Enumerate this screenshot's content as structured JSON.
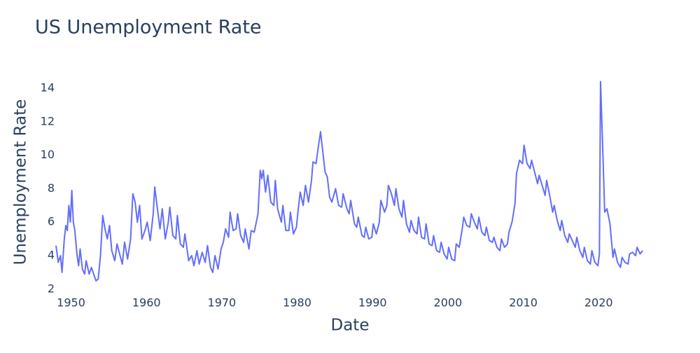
{
  "chart_data": {
    "type": "line",
    "title": "US Unemployment Rate",
    "x_label": "Date",
    "y_label": "Unemployment Rate",
    "color": "#636efa",
    "x": [
      1948.0,
      1948.3,
      1948.6,
      1948.8,
      1949.1,
      1949.3,
      1949.5,
      1949.7,
      1949.9,
      1950.1,
      1950.3,
      1950.5,
      1950.8,
      1951.0,
      1951.2,
      1951.5,
      1951.8,
      1952.0,
      1952.4,
      1952.7,
      1953.0,
      1953.3,
      1953.6,
      1953.9,
      1954.2,
      1954.5,
      1954.8,
      1955.1,
      1955.4,
      1955.8,
      1956.1,
      1956.5,
      1956.8,
      1957.1,
      1957.5,
      1957.9,
      1958.2,
      1958.5,
      1958.8,
      1959.1,
      1959.4,
      1959.8,
      1960.1,
      1960.5,
      1960.9,
      1961.1,
      1961.4,
      1961.8,
      1962.1,
      1962.5,
      1962.9,
      1963.1,
      1963.5,
      1963.9,
      1964.1,
      1964.5,
      1964.9,
      1965.1,
      1965.6,
      1966.0,
      1966.3,
      1966.7,
      1967.0,
      1967.4,
      1967.8,
      1968.1,
      1968.5,
      1968.8,
      1969.1,
      1969.5,
      1969.9,
      1970.2,
      1970.5,
      1970.9,
      1971.1,
      1971.5,
      1971.9,
      1972.1,
      1972.5,
      1972.9,
      1973.1,
      1973.6,
      1973.9,
      1974.3,
      1974.8,
      1975.1,
      1975.3,
      1975.5,
      1975.8,
      1976.1,
      1976.5,
      1976.9,
      1977.1,
      1977.4,
      1977.9,
      1978.1,
      1978.5,
      1978.9,
      1979.1,
      1979.5,
      1979.9,
      1980.1,
      1980.4,
      1980.8,
      1981.1,
      1981.5,
      1981.9,
      1982.1,
      1982.5,
      1982.9,
      1983.1,
      1983.4,
      1983.7,
      1984.0,
      1984.3,
      1984.6,
      1985.1,
      1985.5,
      1985.9,
      1986.1,
      1986.6,
      1986.9,
      1987.1,
      1987.6,
      1987.9,
      1988.1,
      1988.6,
      1988.9,
      1989.1,
      1989.5,
      1989.9,
      1990.1,
      1990.5,
      1990.9,
      1991.1,
      1991.6,
      1991.9,
      1992.1,
      1992.5,
      1992.9,
      1993.1,
      1993.5,
      1993.9,
      1994.1,
      1994.5,
      1994.9,
      1995.1,
      1995.5,
      1995.9,
      1996.1,
      1996.5,
      1996.9,
      1997.1,
      1997.5,
      1997.9,
      1998.1,
      1998.5,
      1998.9,
      1999.1,
      1999.5,
      1999.9,
      2000.1,
      2000.5,
      2000.9,
      2001.1,
      2001.5,
      2001.9,
      2002.1,
      2002.5,
      2002.9,
      2003.1,
      2003.5,
      2003.9,
      2004.1,
      2004.5,
      2004.9,
      2005.1,
      2005.5,
      2005.9,
      2006.1,
      2006.5,
      2006.9,
      2007.1,
      2007.5,
      2007.9,
      2008.1,
      2008.5,
      2008.9,
      2009.1,
      2009.5,
      2009.9,
      2010.1,
      2010.5,
      2010.9,
      2011.1,
      2011.5,
      2011.9,
      2012.1,
      2012.5,
      2012.9,
      2013.1,
      2013.5,
      2013.9,
      2014.1,
      2014.5,
      2014.9,
      2015.1,
      2015.5,
      2015.9,
      2016.1,
      2016.5,
      2016.9,
      2017.1,
      2017.5,
      2017.9,
      2018.1,
      2018.5,
      2018.9,
      2019.1,
      2019.5,
      2019.9,
      2020.1,
      2020.25,
      2020.5,
      2020.8,
      2021.1,
      2021.5,
      2021.9,
      2022.1,
      2022.5,
      2022.9,
      2023.1,
      2023.5,
      2023.9,
      2024.1,
      2024.5,
      2024.9,
      2025.1,
      2025.5,
      2025.83
    ],
    "values": [
      4.6,
      3.6,
      4.0,
      3.0,
      5.0,
      5.8,
      5.5,
      7.0,
      6.0,
      7.9,
      6.0,
      5.5,
      4.0,
      3.4,
      4.4,
      3.2,
      2.9,
      3.7,
      2.9,
      3.3,
      2.9,
      2.5,
      2.6,
      4.0,
      6.4,
      5.6,
      5.0,
      5.8,
      4.3,
      3.7,
      4.7,
      4.0,
      3.5,
      4.8,
      3.8,
      5.0,
      7.7,
      7.2,
      6.0,
      7.0,
      5.0,
      5.5,
      6.0,
      4.9,
      6.5,
      8.1,
      7.0,
      5.6,
      6.8,
      5.0,
      6.0,
      6.9,
      5.2,
      5.0,
      6.4,
      4.7,
      4.5,
      5.3,
      3.7,
      4.0,
      3.4,
      4.3,
      3.5,
      4.2,
      3.6,
      4.6,
      3.3,
      3.0,
      4.0,
      3.2,
      4.4,
      4.8,
      5.6,
      5.1,
      6.6,
      5.5,
      5.6,
      6.5,
      5.2,
      4.8,
      5.6,
      4.4,
      5.5,
      5.4,
      6.5,
      9.1,
      8.6,
      9.1,
      7.8,
      8.8,
      7.2,
      7.0,
      8.5,
      6.8,
      6.0,
      7.0,
      5.5,
      5.5,
      6.6,
      5.3,
      5.7,
      6.6,
      7.8,
      7.0,
      8.2,
      7.2,
      8.5,
      9.6,
      9.5,
      10.8,
      11.4,
      10.2,
      9.0,
      8.7,
      7.5,
      7.2,
      8.0,
      7.0,
      6.9,
      7.7,
      6.8,
      6.5,
      7.3,
      5.9,
      5.7,
      6.3,
      5.2,
      5.1,
      5.7,
      5.0,
      5.1,
      5.9,
      5.3,
      6.0,
      7.3,
      6.6,
      7.0,
      8.2,
      7.7,
      7.0,
      8.0,
      6.8,
      6.3,
      7.3,
      5.9,
      5.4,
      6.1,
      5.5,
      5.3,
      6.3,
      5.1,
      5.0,
      5.9,
      4.7,
      4.6,
      5.2,
      4.3,
      4.2,
      4.8,
      4.1,
      3.8,
      4.5,
      3.8,
      3.7,
      4.7,
      4.5,
      5.6,
      6.3,
      5.8,
      5.7,
      6.5,
      6.0,
      5.6,
      6.3,
      5.4,
      5.2,
      5.7,
      4.9,
      4.8,
      5.1,
      4.5,
      4.3,
      5.0,
      4.5,
      4.7,
      5.4,
      6.0,
      7.1,
      8.9,
      9.7,
      9.5,
      10.6,
      9.5,
      9.2,
      9.7,
      9.0,
      8.3,
      8.8,
      8.2,
      7.6,
      8.5,
      7.6,
      6.6,
      7.0,
      6.1,
      5.5,
      6.1,
      5.2,
      4.8,
      5.3,
      4.9,
      4.5,
      5.1,
      4.3,
      3.9,
      4.5,
      3.7,
      3.5,
      4.3,
      3.6,
      3.4,
      4.1,
      14.4,
      11.0,
      6.6,
      6.8,
      5.9,
      3.9,
      4.4,
      3.6,
      3.3,
      3.9,
      3.6,
      3.5,
      4.1,
      4.2,
      4.0,
      4.5,
      4.1,
      4.3
    ],
    "xlim": [
      1948,
      2025.83
    ],
    "xticks": [
      1950,
      1960,
      1970,
      1980,
      1990,
      2000,
      2010,
      2020
    ],
    "ylim": [
      1.7,
      14.9
    ],
    "yticks": [
      2,
      4,
      6,
      8,
      10,
      12,
      14
    ]
  }
}
